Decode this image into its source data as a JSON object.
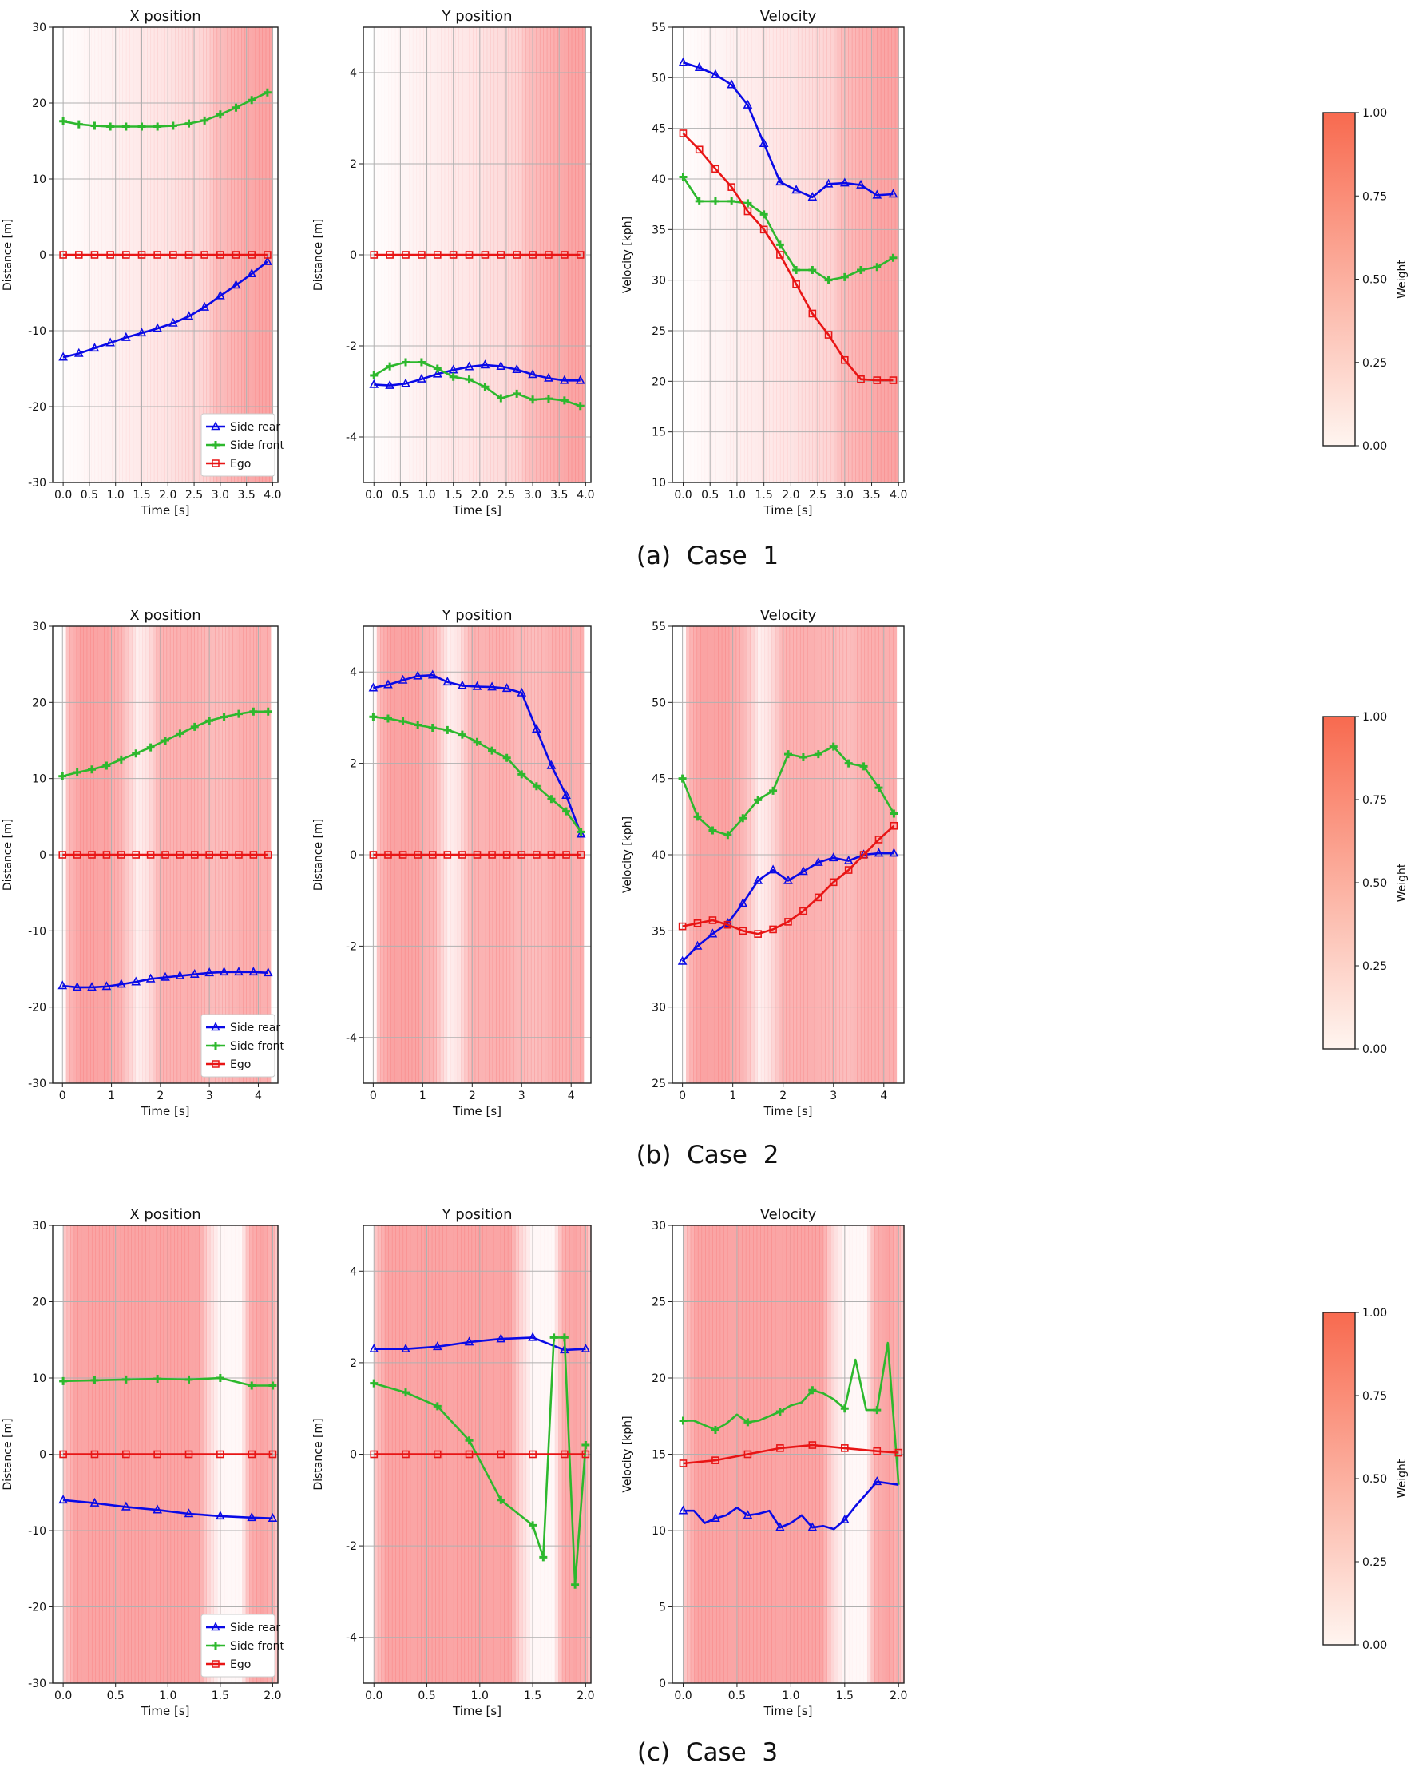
{
  "legend": {
    "side_rear": "Side rear",
    "side_front": "Side front",
    "ego": "Ego"
  },
  "colorbar": {
    "label": "Weight",
    "ticks": [
      "0.00",
      "0.25",
      "0.50",
      "0.75",
      "1.00"
    ],
    "color_low": "#fff5f0",
    "color_high": "#f86a4f"
  },
  "colors": {
    "side_rear": "#0a0ae6",
    "side_front": "#2db82d",
    "ego": "#e81515",
    "shade": "#f87f7f"
  },
  "captions": [
    "(a)  Case  1",
    "(b)  Case  2",
    "(c)  Case  3"
  ],
  "chart_data": [
    {
      "case": 1,
      "type": "line",
      "title": "X position",
      "xlabel": "Time [s]",
      "ylabel": "Distance [m]",
      "xlim": [
        -0.2,
        4.1
      ],
      "ylim": [
        -30,
        30
      ],
      "xticks": [
        0,
        0.5,
        1,
        1.5,
        2,
        2.5,
        3,
        3.5,
        4
      ],
      "xticklabels": [
        "0.0",
        "0.5",
        "1.0",
        "1.5",
        "2.0",
        "2.5",
        "3.0",
        "3.5",
        "4.0"
      ],
      "yticks": [
        -30,
        -20,
        -10,
        0,
        10,
        20,
        30
      ],
      "legend": "lower-right",
      "x": [
        0,
        0.3,
        0.6,
        0.9,
        1.2,
        1.5,
        1.8,
        2.1,
        2.4,
        2.7,
        3.0,
        3.3,
        3.6,
        3.9
      ],
      "series": [
        {
          "name": "Side rear",
          "values": [
            -13.5,
            -13.0,
            -12.3,
            -11.6,
            -10.9,
            -10.3,
            -9.7,
            -9.0,
            -8.1,
            -6.9,
            -5.4,
            -4.0,
            -2.5,
            -0.9
          ]
        },
        {
          "name": "Side front",
          "values": [
            17.6,
            17.2,
            17.0,
            16.9,
            16.9,
            16.9,
            16.9,
            17.0,
            17.3,
            17.7,
            18.5,
            19.4,
            20.4,
            21.4
          ]
        },
        {
          "name": "Ego",
          "values": [
            0,
            0,
            0,
            0,
            0,
            0,
            0,
            0,
            0,
            0,
            0,
            0,
            0,
            0
          ]
        }
      ]
    },
    {
      "case": 1,
      "type": "line",
      "title": "Y position",
      "xlabel": "Time [s]",
      "ylabel": "Distance [m]",
      "xlim": [
        -0.2,
        4.1
      ],
      "ylim": [
        -5,
        5
      ],
      "xticks": [
        0,
        0.5,
        1,
        1.5,
        2,
        2.5,
        3,
        3.5,
        4
      ],
      "xticklabels": [
        "0.0",
        "0.5",
        "1.0",
        "1.5",
        "2.0",
        "2.5",
        "3.0",
        "3.5",
        "4.0"
      ],
      "yticks": [
        -4,
        -2,
        0,
        2,
        4
      ],
      "x": [
        0,
        0.3,
        0.6,
        0.9,
        1.2,
        1.5,
        1.8,
        2.1,
        2.4,
        2.7,
        3.0,
        3.3,
        3.6,
        3.9
      ],
      "series": [
        {
          "name": "Side rear",
          "values": [
            -2.85,
            -2.87,
            -2.83,
            -2.73,
            -2.62,
            -2.53,
            -2.46,
            -2.42,
            -2.45,
            -2.52,
            -2.63,
            -2.71,
            -2.76,
            -2.76
          ]
        },
        {
          "name": "Side front",
          "values": [
            -2.65,
            -2.45,
            -2.36,
            -2.36,
            -2.5,
            -2.68,
            -2.74,
            -2.9,
            -3.15,
            -3.05,
            -3.18,
            -3.16,
            -3.2,
            -3.32
          ]
        },
        {
          "name": "Ego",
          "values": [
            0,
            0,
            0,
            0,
            0,
            0,
            0,
            0,
            0,
            0,
            0,
            0,
            0,
            0
          ]
        }
      ]
    },
    {
      "case": 1,
      "type": "line",
      "title": "Velocity",
      "xlabel": "Time [s]",
      "ylabel": "Velocity [kph]",
      "xlim": [
        -0.2,
        4.1
      ],
      "ylim": [
        10,
        55
      ],
      "xticks": [
        0,
        0.5,
        1,
        1.5,
        2,
        2.5,
        3,
        3.5,
        4
      ],
      "xticklabels": [
        "0.0",
        "0.5",
        "1.0",
        "1.5",
        "2.0",
        "2.5",
        "3.0",
        "3.5",
        "4.0"
      ],
      "yticks": [
        10,
        15,
        20,
        25,
        30,
        35,
        40,
        45,
        50,
        55
      ],
      "colorbar": true,
      "x": [
        0,
        0.3,
        0.6,
        0.9,
        1.2,
        1.5,
        1.8,
        2.1,
        2.4,
        2.7,
        3.0,
        3.3,
        3.6,
        3.9
      ],
      "series": [
        {
          "name": "Side rear",
          "values": [
            51.5,
            51.0,
            50.3,
            49.3,
            47.3,
            43.5,
            39.7,
            38.9,
            38.2,
            39.5,
            39.6,
            39.4,
            38.4,
            38.5
          ]
        },
        {
          "name": "Side front",
          "values": [
            40.2,
            37.8,
            37.8,
            37.8,
            37.6,
            36.5,
            33.5,
            31.0,
            31.0,
            30.0,
            30.3,
            31.0,
            31.3,
            32.2
          ]
        },
        {
          "name": "Ego",
          "values": [
            44.5,
            42.9,
            41.0,
            39.2,
            36.8,
            35.0,
            32.5,
            29.6,
            26.7,
            24.6,
            22.1,
            20.2,
            20.1,
            20.1
          ]
        }
      ]
    },
    {
      "case": 2,
      "type": "line",
      "title": "X position",
      "xlabel": "Time [s]",
      "ylabel": "Distance [m]",
      "xlim": [
        -0.2,
        4.4
      ],
      "ylim": [
        -30,
        30
      ],
      "xticks": [
        0,
        1,
        2,
        3,
        4
      ],
      "xticklabels": [
        "0",
        "1",
        "2",
        "3",
        "4"
      ],
      "yticks": [
        -30,
        -20,
        -10,
        0,
        10,
        20,
        30
      ],
      "legend": "lower-right",
      "x": [
        0,
        0.3,
        0.6,
        0.9,
        1.2,
        1.5,
        1.8,
        2.1,
        2.4,
        2.7,
        3.0,
        3.3,
        3.6,
        3.9,
        4.2
      ],
      "series": [
        {
          "name": "Side rear",
          "values": [
            -17.2,
            -17.4,
            -17.4,
            -17.3,
            -17.0,
            -16.7,
            -16.3,
            -16.1,
            -15.9,
            -15.7,
            -15.5,
            -15.4,
            -15.4,
            -15.4,
            -15.5
          ]
        },
        {
          "name": "Side front",
          "values": [
            10.3,
            10.8,
            11.2,
            11.7,
            12.5,
            13.3,
            14.1,
            15.0,
            15.9,
            16.8,
            17.6,
            18.1,
            18.5,
            18.8,
            18.8
          ]
        },
        {
          "name": "Ego",
          "values": [
            0,
            0,
            0,
            0,
            0,
            0,
            0,
            0,
            0,
            0,
            0,
            0,
            0,
            0,
            0
          ]
        }
      ]
    },
    {
      "case": 2,
      "type": "line",
      "title": "Y position",
      "xlabel": "Time [s]",
      "ylabel": "Distance [m]",
      "xlim": [
        -0.2,
        4.4
      ],
      "ylim": [
        -5,
        5
      ],
      "xticks": [
        0,
        1,
        2,
        3,
        4
      ],
      "xticklabels": [
        "0",
        "1",
        "2",
        "3",
        "4"
      ],
      "yticks": [
        -4,
        -2,
        0,
        2,
        4
      ],
      "x": [
        0,
        0.3,
        0.6,
        0.9,
        1.2,
        1.5,
        1.8,
        2.1,
        2.4,
        2.7,
        3.0,
        3.3,
        3.6,
        3.9,
        4.2
      ],
      "series": [
        {
          "name": "Side rear",
          "values": [
            3.65,
            3.72,
            3.82,
            3.91,
            3.93,
            3.78,
            3.7,
            3.68,
            3.67,
            3.64,
            3.54,
            2.75,
            1.95,
            1.3,
            0.45
          ]
        },
        {
          "name": "Side front",
          "values": [
            3.02,
            2.98,
            2.92,
            2.84,
            2.78,
            2.73,
            2.63,
            2.47,
            2.28,
            2.12,
            1.76,
            1.5,
            1.22,
            0.95,
            0.5
          ]
        },
        {
          "name": "Ego",
          "values": [
            0,
            0,
            0,
            0,
            0,
            0,
            0,
            0,
            0,
            0,
            0,
            0,
            0,
            0,
            0
          ]
        }
      ]
    },
    {
      "case": 2,
      "type": "line",
      "title": "Velocity",
      "xlabel": "Time [s]",
      "ylabel": "Velocity [kph]",
      "xlim": [
        -0.2,
        4.4
      ],
      "ylim": [
        25,
        55
      ],
      "xticks": [
        0,
        1,
        2,
        3,
        4
      ],
      "xticklabels": [
        "0",
        "1",
        "2",
        "3",
        "4"
      ],
      "yticks": [
        25,
        30,
        35,
        40,
        45,
        50,
        55
      ],
      "colorbar": true,
      "x": [
        0,
        0.3,
        0.6,
        0.9,
        1.2,
        1.5,
        1.8,
        2.1,
        2.4,
        2.7,
        3.0,
        3.3,
        3.6,
        3.9,
        4.2
      ],
      "series": [
        {
          "name": "Side rear",
          "values": [
            33.0,
            34.0,
            34.8,
            35.5,
            36.8,
            38.3,
            39.0,
            38.3,
            38.9,
            39.5,
            39.8,
            39.6,
            40.0,
            40.1,
            40.1
          ]
        },
        {
          "name": "Side front",
          "values": [
            45.0,
            42.5,
            41.6,
            41.3,
            42.4,
            43.6,
            44.2,
            46.6,
            46.4,
            46.6,
            47.1,
            46.0,
            45.8,
            44.4,
            42.7
          ]
        },
        {
          "name": "Ego",
          "values": [
            35.3,
            35.5,
            35.7,
            35.4,
            35.0,
            34.8,
            35.1,
            35.6,
            36.3,
            37.2,
            38.2,
            39.0,
            40.0,
            41.0,
            41.9
          ]
        }
      ]
    },
    {
      "case": 3,
      "type": "line",
      "title": "X position",
      "xlabel": "Time [s]",
      "ylabel": "Distance [m]",
      "xlim": [
        -0.1,
        2.05
      ],
      "ylim": [
        -30,
        30
      ],
      "xticks": [
        0,
        0.5,
        1,
        1.5,
        2
      ],
      "xticklabels": [
        "0.0",
        "0.5",
        "1.0",
        "1.5",
        "2.0"
      ],
      "yticks": [
        -30,
        -20,
        -10,
        0,
        10,
        20,
        30
      ],
      "legend": "lower-right",
      "x": [
        0,
        0.3,
        0.6,
        0.9,
        1.2,
        1.5,
        1.8,
        2.0
      ],
      "series": [
        {
          "name": "Side rear",
          "values": [
            -6.0,
            -6.4,
            -6.9,
            -7.3,
            -7.8,
            -8.1,
            -8.3,
            -8.4
          ]
        },
        {
          "name": "Side front",
          "values": [
            9.6,
            9.7,
            9.8,
            9.9,
            9.8,
            10.0,
            9.0,
            9.0
          ]
        },
        {
          "name": "Ego",
          "values": [
            0,
            0,
            0,
            0,
            0,
            0,
            0,
            0
          ]
        }
      ]
    },
    {
      "case": 3,
      "type": "line",
      "title": "Y position",
      "xlabel": "Time [s]",
      "ylabel": "Distance [m]",
      "xlim": [
        -0.1,
        2.05
      ],
      "ylim": [
        -5,
        5
      ],
      "xticks": [
        0,
        0.5,
        1,
        1.5,
        2
      ],
      "xticklabels": [
        "0.0",
        "0.5",
        "1.0",
        "1.5",
        "2.0"
      ],
      "yticks": [
        -4,
        -2,
        0,
        2,
        4
      ],
      "x_side_rear": [
        0,
        0.3,
        0.6,
        0.9,
        1.2,
        1.5,
        1.8,
        2.0
      ],
      "x": [
        0,
        0.3,
        0.6,
        0.9,
        1.2,
        1.5,
        1.6,
        1.7,
        1.8,
        1.9,
        2.0
      ],
      "series": [
        {
          "name": "Side rear",
          "x": [
            0,
            0.3,
            0.6,
            0.9,
            1.2,
            1.5,
            1.8,
            2.0
          ],
          "values": [
            2.3,
            2.3,
            2.35,
            2.45,
            2.52,
            2.55,
            2.28,
            2.3
          ]
        },
        {
          "name": "Side front",
          "x": [
            0,
            0.3,
            0.6,
            0.9,
            1.2,
            1.5,
            1.6,
            1.7,
            1.8,
            1.9,
            2.0
          ],
          "values": [
            1.55,
            1.35,
            1.05,
            0.3,
            -1.0,
            -1.55,
            -2.25,
            2.55,
            2.55,
            -2.85,
            0.2
          ]
        },
        {
          "name": "Ego",
          "x": [
            0,
            0.3,
            0.6,
            0.9,
            1.2,
            1.5,
            1.8,
            2.0
          ],
          "values": [
            0,
            0,
            0,
            0,
            0,
            0,
            0,
            0
          ]
        }
      ]
    },
    {
      "case": 3,
      "type": "line",
      "title": "Velocity",
      "xlabel": "Time [s]",
      "ylabel": "Velocity [kph]",
      "xlim": [
        -0.1,
        2.05
      ],
      "ylim": [
        0,
        30
      ],
      "xticks": [
        0,
        0.5,
        1,
        1.5,
        2
      ],
      "xticklabels": [
        "0.0",
        "0.5",
        "1.0",
        "1.5",
        "2.0"
      ],
      "yticks": [
        0,
        5,
        10,
        15,
        20,
        25,
        30
      ],
      "colorbar": true,
      "series": [
        {
          "name": "Side rear",
          "x": [
            0,
            0.1,
            0.2,
            0.3,
            0.4,
            0.5,
            0.6,
            0.7,
            0.8,
            0.9,
            1.0,
            1.1,
            1.2,
            1.3,
            1.4,
            1.5,
            1.6,
            1.7,
            1.8,
            2.0
          ],
          "values": [
            11.3,
            11.3,
            10.5,
            10.8,
            11.0,
            11.5,
            11.0,
            11.1,
            11.3,
            10.2,
            10.5,
            11.0,
            10.2,
            10.3,
            10.1,
            10.7,
            11.6,
            12.4,
            13.2,
            13.0
          ]
        },
        {
          "name": "Side front",
          "x": [
            0,
            0.1,
            0.2,
            0.3,
            0.4,
            0.5,
            0.6,
            0.7,
            0.8,
            0.9,
            1.0,
            1.1,
            1.2,
            1.3,
            1.4,
            1.5,
            1.6,
            1.7,
            1.8,
            1.9,
            2.0
          ],
          "values": [
            17.2,
            17.2,
            16.9,
            16.6,
            17.0,
            17.6,
            17.1,
            17.2,
            17.5,
            17.8,
            18.2,
            18.4,
            19.2,
            19.0,
            18.6,
            18.0,
            21.2,
            17.9,
            17.9,
            22.3,
            13.0
          ]
        },
        {
          "name": "Ego",
          "x": [
            0,
            0.3,
            0.6,
            0.9,
            1.2,
            1.5,
            1.8,
            2.0
          ],
          "values": [
            14.4,
            14.6,
            15.0,
            15.4,
            15.6,
            15.4,
            15.2,
            15.1
          ]
        }
      ]
    }
  ]
}
